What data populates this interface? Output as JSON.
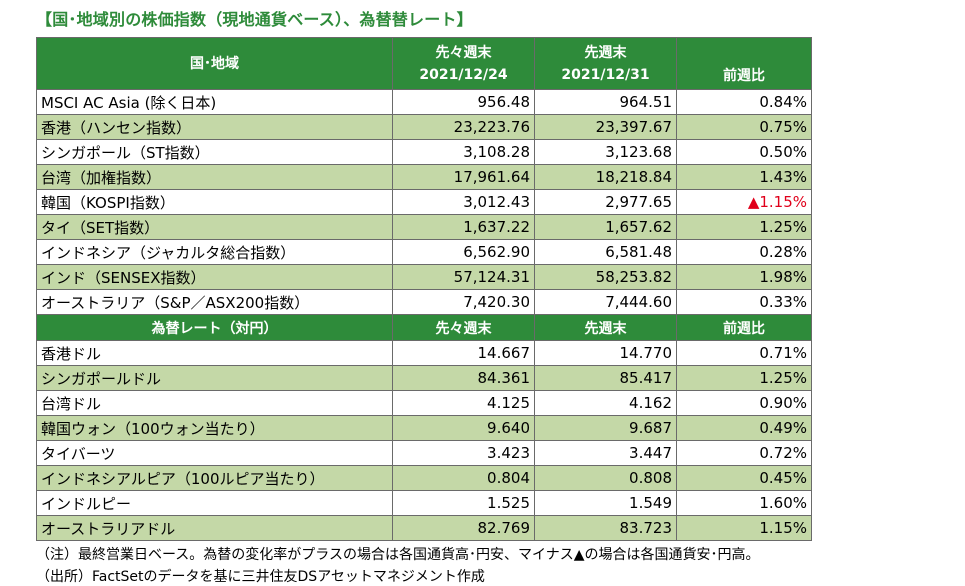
{
  "title": "【国･地域別の株価指数（現地通貨ベース）、為替替レート】",
  "stock_section": {
    "header": {
      "col0": "国･地域",
      "col1_line1": "先々週末",
      "col1_line2": "2021/12/24",
      "col2_line1": "先週末",
      "col2_line2": "2021/12/31",
      "col3": "前週比"
    },
    "rows": [
      {
        "name": "MSCI AC Asia (除く日本)",
        "prev2": "956.48",
        "prev1": "964.51",
        "change": "0.84%"
      },
      {
        "name": "香港（ハンセン指数）",
        "prev2": "23,223.76",
        "prev1": "23,397.67",
        "change": "0.75%"
      },
      {
        "name": "シンガポール（ST指数）",
        "prev2": "3,108.28",
        "prev1": "3,123.68",
        "change": "0.50%"
      },
      {
        "name": "台湾（加権指数）",
        "prev2": "17,961.64",
        "prev1": "18,218.84",
        "change": "1.43%"
      },
      {
        "name": "韓国（KOSPI指数）",
        "prev2": "3,012.43",
        "prev1": "2,977.65",
        "change": "▲1.15%"
      },
      {
        "name": "タイ（SET指数）",
        "prev2": "1,637.22",
        "prev1": "1,657.62",
        "change": "1.25%"
      },
      {
        "name": "インドネシア（ジャカルタ総合指数）",
        "prev2": "6,562.90",
        "prev1": "6,581.48",
        "change": "0.28%"
      },
      {
        "name": "インド（SENSEX指数）",
        "prev2": "57,124.31",
        "prev1": "58,253.82",
        "change": "1.98%"
      },
      {
        "name": "オーストラリア（S&P／ASX200指数）",
        "prev2": "7,420.30",
        "prev1": "7,444.60",
        "change": "0.33%"
      }
    ]
  },
  "fx_section": {
    "header": {
      "col0": "為替レート（対円）",
      "col1": "先々週末",
      "col2": "先週末",
      "col3": "前週比"
    },
    "rows": [
      {
        "name": "香港ドル",
        "prev2": "14.667",
        "prev1": "14.770",
        "change": "0.71%"
      },
      {
        "name": "シンガポールドル",
        "prev2": "84.361",
        "prev1": "85.417",
        "change": "1.25%"
      },
      {
        "name": "台湾ドル",
        "prev2": "4.125",
        "prev1": "4.162",
        "change": "0.90%"
      },
      {
        "name": "韓国ウォン（100ウォン当たり）",
        "prev2": "9.640",
        "prev1": "9.687",
        "change": "0.49%"
      },
      {
        "name": "タイバーツ",
        "prev2": "3.423",
        "prev1": "3.447",
        "change": "0.72%"
      },
      {
        "name": "インドネシアルピア（100ルピア当たり）",
        "prev2": "0.804",
        "prev1": "0.808",
        "change": "0.45%"
      },
      {
        "name": "インドルピー",
        "prev2": "1.525",
        "prev1": "1.549",
        "change": "1.60%"
      },
      {
        "name": "オーストラリアドル",
        "prev2": "82.769",
        "prev1": "83.723",
        "change": "1.15%"
      }
    ]
  },
  "notes": {
    "note1": "（注）最終営業日ベース。為替の変化率がプラスの場合は各国通貨高･円安、マイナス▲の場合は各国通貨安･円高。",
    "note2": "（出所）FactSetのデータを基に三井住友DSアセットマネジメント作成"
  },
  "colors": {
    "header_green": "#2e8b3a",
    "band_green": "#c4d8a7",
    "negative_red": "#e0001b"
  }
}
